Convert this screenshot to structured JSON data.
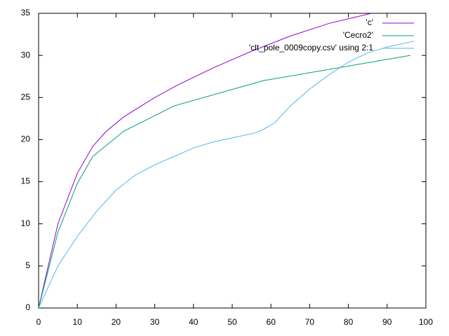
{
  "chart_data": {
    "type": "line",
    "xlim": [
      0,
      100
    ],
    "ylim": [
      0,
      35
    ],
    "xticks": [
      0,
      10,
      20,
      30,
      40,
      50,
      60,
      70,
      80,
      90,
      100
    ],
    "yticks": [
      0,
      5,
      10,
      15,
      20,
      25,
      30,
      35
    ],
    "series": [
      {
        "name": "'c'",
        "color": "#9400d3",
        "x": [
          0,
          5,
          10,
          14,
          17.5,
          22,
          30,
          36,
          45,
          55,
          65,
          75,
          86
        ],
        "values": [
          0,
          10,
          16,
          19.2,
          21,
          22.7,
          25,
          26.5,
          28.5,
          30.5,
          32.3,
          33.8,
          35
        ]
      },
      {
        "name": "'Cecro2'",
        "color": "#009e73",
        "x": [
          0,
          5,
          10,
          14,
          22,
          35,
          58,
          96
        ],
        "values": [
          0,
          9,
          14.8,
          18,
          21,
          24,
          27,
          30
        ]
      },
      {
        "name": "'clt_pole_0009copy.csv' using 2:1",
        "color": "#56b4e9",
        "x": [
          0,
          2,
          5,
          10,
          15,
          20,
          25,
          30,
          35,
          40,
          45,
          50,
          56,
          58,
          61,
          65,
          70,
          75,
          80,
          85,
          90,
          97
        ],
        "values": [
          0,
          2,
          5,
          8.5,
          11.5,
          14,
          15.8,
          17,
          18,
          19,
          19.7,
          20.2,
          20.8,
          21.2,
          22,
          24,
          26,
          27.7,
          29.2,
          30.3,
          31,
          31.7
        ]
      }
    ]
  }
}
